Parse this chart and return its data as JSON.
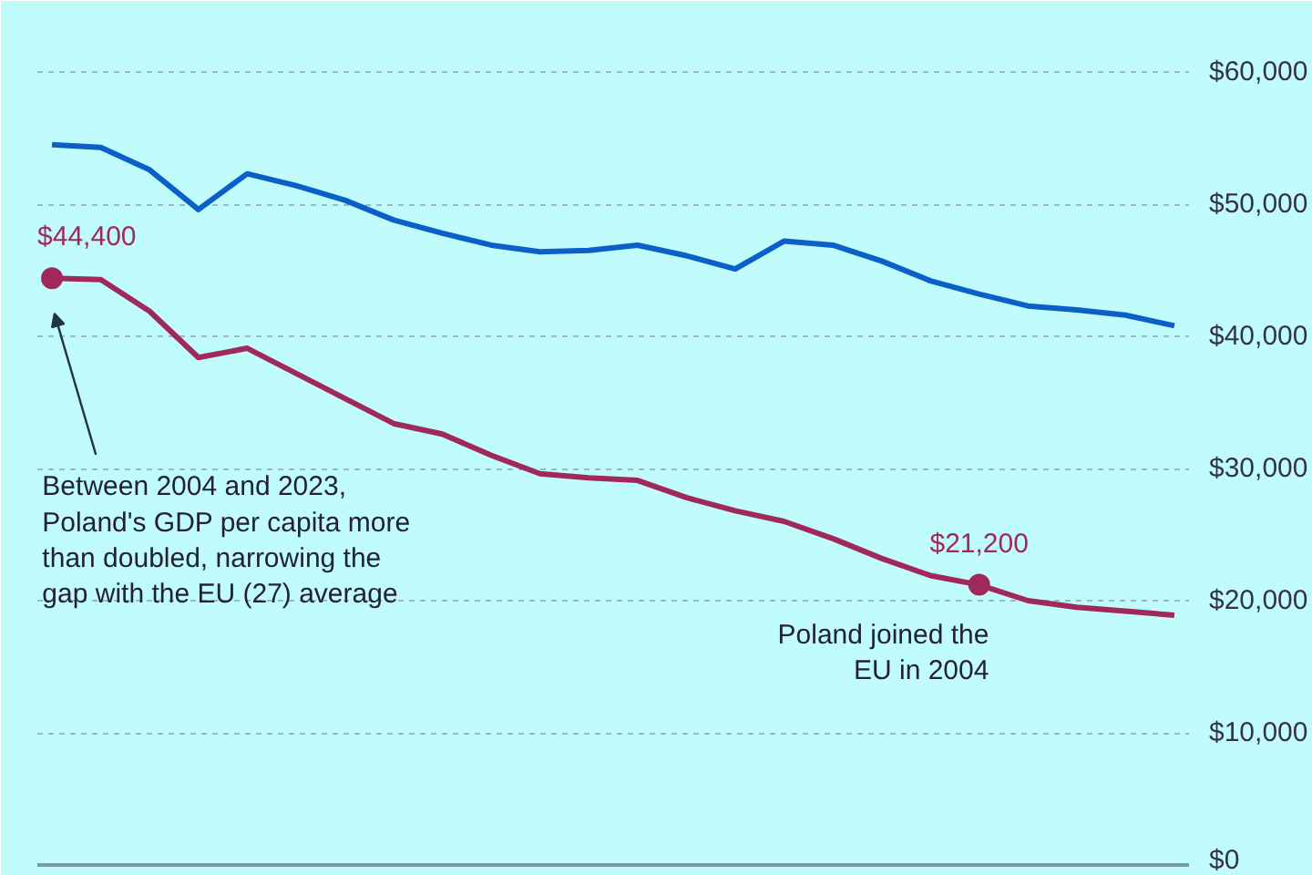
{
  "chart_data": {
    "type": "line",
    "categories": [
      null,
      null,
      null,
      null,
      null,
      null,
      null,
      null,
      null,
      null,
      null,
      null,
      null,
      null,
      null,
      null,
      null,
      null,
      null,
      null,
      null,
      null,
      null,
      null
    ],
    "series": [
      {
        "color": "#0a5fc8",
        "values": [
          54500,
          54300,
          52600,
          49600,
          52300,
          51400,
          50300,
          48800,
          47800,
          46900,
          46400,
          46500,
          46900,
          46100,
          45100,
          47200,
          46900,
          45700,
          44200,
          43200,
          42300,
          42000,
          41600,
          40800
        ]
      },
      {
        "color": "#a0285a",
        "values": [
          44400,
          44300,
          41900,
          38400,
          39100,
          37200,
          35300,
          33400,
          32600,
          31000,
          29600,
          29300,
          29100,
          27800,
          26800,
          26000,
          24700,
          23200,
          21900,
          21200,
          20000,
          19500,
          19200,
          18900
        ],
        "value_labels": [
          "$44,400",
          null,
          null,
          null,
          null,
          null,
          null,
          null,
          null,
          null,
          null,
          null,
          null,
          null,
          null,
          null,
          null,
          null,
          null,
          "$21,200",
          null,
          null,
          null,
          null
        ]
      }
    ],
    "ylim": [
      0,
      64000
    ],
    "yticks": [
      {
        "value": 0,
        "label": "$0"
      },
      {
        "value": 10000,
        "label": "$10,000"
      },
      {
        "value": 20000,
        "label": "$20,000"
      },
      {
        "value": 30000,
        "label": "$30,000"
      },
      {
        "value": 40000,
        "label": "$40,000"
      },
      {
        "value": 50000,
        "label": "$50,000"
      },
      {
        "value": 60000,
        "label": "$60,000"
      }
    ],
    "grid": "y",
    "tick_labels": "y",
    "marker": "none",
    "line_style": "solid",
    "annotations": [
      "Between 2004 and 2023,\nPoland's GDP per capita more\nthan doubled, narrowing the\ngap with the EU (27) average",
      "Poland joined the\nEU in 2004"
    ]
  }
}
